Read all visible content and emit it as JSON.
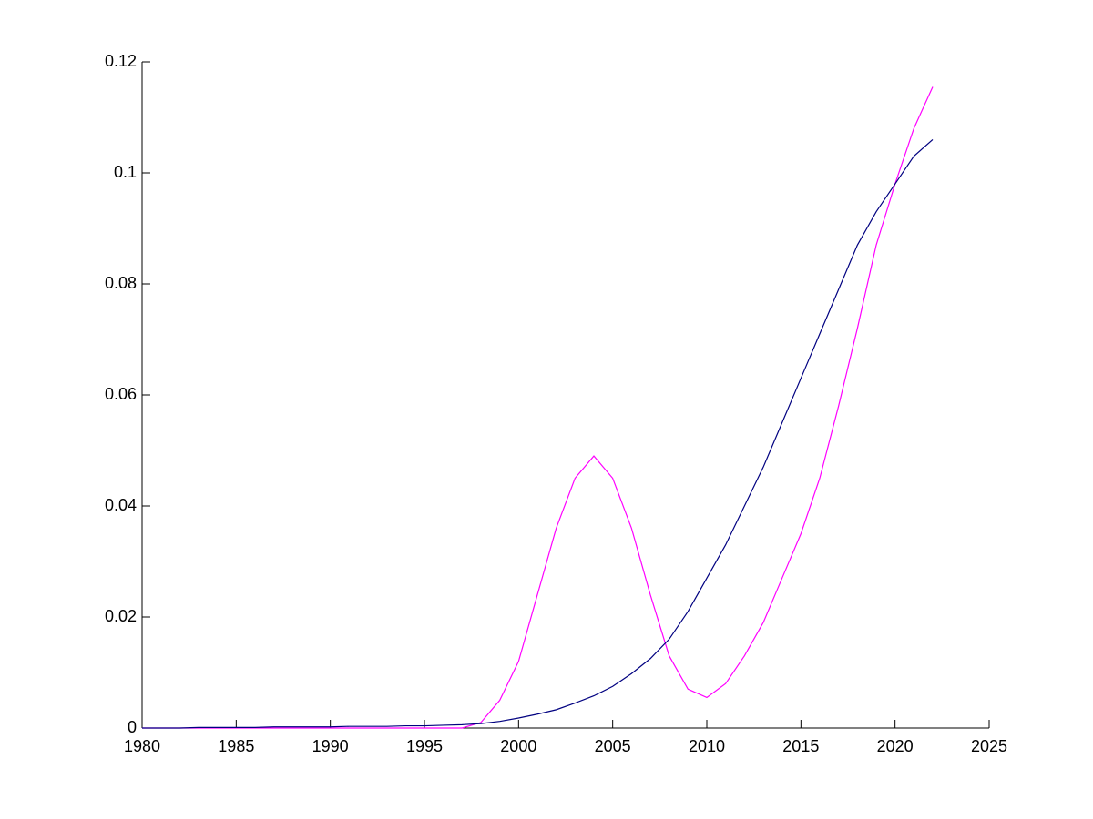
{
  "chart_data": {
    "type": "line",
    "x": [
      1980,
      1981,
      1982,
      1983,
      1984,
      1985,
      1986,
      1987,
      1988,
      1989,
      1990,
      1991,
      1992,
      1993,
      1994,
      1995,
      1996,
      1997,
      1998,
      1999,
      2000,
      2001,
      2002,
      2003,
      2004,
      2005,
      2006,
      2007,
      2008,
      2009,
      2010,
      2011,
      2012,
      2013,
      2014,
      2015,
      2016,
      2017,
      2018,
      2019,
      2020,
      2021,
      2022
    ],
    "series": [
      {
        "color": "#ff00ff",
        "values": [
          0,
          0,
          0,
          0,
          0,
          0,
          0,
          0,
          0,
          0,
          0,
          0,
          0,
          0,
          0,
          0,
          0,
          0,
          0.001,
          0.005,
          0.012,
          0.024,
          0.036,
          0.045,
          0.049,
          0.045,
          0.036,
          0.024,
          0.013,
          0.007,
          0.0055,
          0.008,
          0.013,
          0.019,
          0.027,
          0.035,
          0.045,
          0.058,
          0.072,
          0.087,
          0.098,
          0.108,
          0.1155
        ]
      },
      {
        "color": "#000080",
        "values": [
          0,
          0,
          0,
          0.0001,
          0.0001,
          0.0001,
          0.0001,
          0.0002,
          0.0002,
          0.0002,
          0.0002,
          0.0003,
          0.0003,
          0.0003,
          0.0004,
          0.0004,
          0.0005,
          0.0006,
          0.0008,
          0.0012,
          0.0018,
          0.0025,
          0.0033,
          0.0045,
          0.0058,
          0.0075,
          0.0098,
          0.0125,
          0.016,
          0.021,
          0.027,
          0.033,
          0.04,
          0.047,
          0.055,
          0.063,
          0.071,
          0.079,
          0.087,
          0.093,
          0.098,
          0.103,
          0.106
        ]
      }
    ],
    "xlim": [
      1980,
      2025
    ],
    "xticks": [
      1980,
      1985,
      1990,
      1995,
      2000,
      2005,
      2010,
      2015,
      2020,
      2025
    ],
    "ylim": [
      0,
      0.12
    ],
    "yticks": [
      0,
      0.02,
      0.04,
      0.06,
      0.08,
      0.1,
      0.12
    ]
  }
}
